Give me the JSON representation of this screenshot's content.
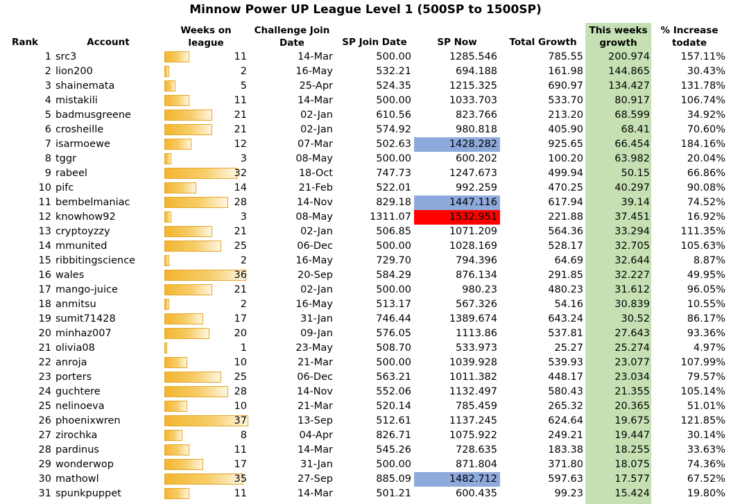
{
  "title": "Minnow Power UP League Level 1 (500SP to 1500SP)",
  "headers": {
    "rank": "Rank",
    "account": "Account",
    "weeks_l1": "Weeks on",
    "weeks_l2": "league",
    "join_l1": "Challenge Join",
    "join_l2": "Date",
    "sp_join": "SP Join Date",
    "sp_now": "SP Now",
    "total_growth": "Total Growth",
    "week_l1": "This weeks",
    "week_l2": "growth",
    "pct_l1": "% Increase",
    "pct_l2": "todate"
  },
  "colors": {
    "this_week_fill": "#c6e0b4",
    "highlight_blue": "#8ea9db",
    "highlight_red": "#ff0000",
    "bar_gold": "#f3b530"
  },
  "max_weeks": 37,
  "rows": [
    {
      "rank": "1",
      "account": "src3",
      "weeks": "11",
      "join": "14-Mar",
      "sp_join": "500.00",
      "sp_now": "1285.546",
      "total": "785.55",
      "week": "200.974",
      "pct": "157.11%",
      "hl": ""
    },
    {
      "rank": "2",
      "account": "lion200",
      "weeks": "2",
      "join": "16-May",
      "sp_join": "532.21",
      "sp_now": "694.188",
      "total": "161.98",
      "week": "144.865",
      "pct": "30.43%",
      "hl": ""
    },
    {
      "rank": "3",
      "account": "shainemata",
      "weeks": "5",
      "join": "25-Apr",
      "sp_join": "524.35",
      "sp_now": "1215.325",
      "total": "690.97",
      "week": "134.427",
      "pct": "131.78%",
      "hl": ""
    },
    {
      "rank": "4",
      "account": "mistakili",
      "weeks": "11",
      "join": "14-Mar",
      "sp_join": "500.00",
      "sp_now": "1033.703",
      "total": "533.70",
      "week": "80.917",
      "pct": "106.74%",
      "hl": ""
    },
    {
      "rank": "5",
      "account": "badmusgreene",
      "weeks": "21",
      "join": "02-Jan",
      "sp_join": "610.56",
      "sp_now": "823.766",
      "total": "213.20",
      "week": "68.599",
      "pct": "34.92%",
      "hl": ""
    },
    {
      "rank": "6",
      "account": "crosheille",
      "weeks": "21",
      "join": "02-Jan",
      "sp_join": "574.92",
      "sp_now": "980.818",
      "total": "405.90",
      "week": "68.41",
      "pct": "70.60%",
      "hl": ""
    },
    {
      "rank": "7",
      "account": "isarmoewe",
      "weeks": "12",
      "join": "07-Mar",
      "sp_join": "502.63",
      "sp_now": "1428.282",
      "total": "925.65",
      "week": "66.454",
      "pct": "184.16%",
      "hl": "blue"
    },
    {
      "rank": "8",
      "account": "tggr",
      "weeks": "3",
      "join": "08-May",
      "sp_join": "500.00",
      "sp_now": "600.202",
      "total": "100.20",
      "week": "63.982",
      "pct": "20.04%",
      "hl": ""
    },
    {
      "rank": "9",
      "account": "rabeel",
      "weeks": "32",
      "join": "18-Oct",
      "sp_join": "747.73",
      "sp_now": "1247.673",
      "total": "499.94",
      "week": "50.15",
      "pct": "66.86%",
      "hl": ""
    },
    {
      "rank": "10",
      "account": "pifc",
      "weeks": "14",
      "join": "21-Feb",
      "sp_join": "522.01",
      "sp_now": "992.259",
      "total": "470.25",
      "week": "40.297",
      "pct": "90.08%",
      "hl": ""
    },
    {
      "rank": "11",
      "account": "bembelmaniac",
      "weeks": "28",
      "join": "14-Nov",
      "sp_join": "829.18",
      "sp_now": "1447.116",
      "total": "617.94",
      "week": "39.14",
      "pct": "74.52%",
      "hl": "blue"
    },
    {
      "rank": "12",
      "account": "knowhow92",
      "weeks": "3",
      "join": "08-May",
      "sp_join": "1311.07",
      "sp_now": "1532.951",
      "total": "221.88",
      "week": "37.451",
      "pct": "16.92%",
      "hl": "red"
    },
    {
      "rank": "13",
      "account": "cryptoyzzy",
      "weeks": "21",
      "join": "02-Jan",
      "sp_join": "506.85",
      "sp_now": "1071.209",
      "total": "564.36",
      "week": "33.294",
      "pct": "111.35%",
      "hl": ""
    },
    {
      "rank": "14",
      "account": "mmunited",
      "weeks": "25",
      "join": "06-Dec",
      "sp_join": "500.00",
      "sp_now": "1028.169",
      "total": "528.17",
      "week": "32.705",
      "pct": "105.63%",
      "hl": ""
    },
    {
      "rank": "15",
      "account": "ribbitingscience",
      "weeks": "2",
      "join": "16-May",
      "sp_join": "729.70",
      "sp_now": "794.396",
      "total": "64.69",
      "week": "32.644",
      "pct": "8.87%",
      "hl": ""
    },
    {
      "rank": "16",
      "account": "wales",
      "weeks": "36",
      "join": "20-Sep",
      "sp_join": "584.29",
      "sp_now": "876.134",
      "total": "291.85",
      "week": "32.227",
      "pct": "49.95%",
      "hl": ""
    },
    {
      "rank": "17",
      "account": "mango-juice",
      "weeks": "21",
      "join": "02-Jan",
      "sp_join": "500.00",
      "sp_now": "980.23",
      "total": "480.23",
      "week": "31.612",
      "pct": "96.05%",
      "hl": ""
    },
    {
      "rank": "18",
      "account": "anmitsu",
      "weeks": "2",
      "join": "16-May",
      "sp_join": "513.17",
      "sp_now": "567.326",
      "total": "54.16",
      "week": "30.839",
      "pct": "10.55%",
      "hl": ""
    },
    {
      "rank": "19",
      "account": "sumit71428",
      "weeks": "17",
      "join": "31-Jan",
      "sp_join": "746.44",
      "sp_now": "1389.674",
      "total": "643.24",
      "week": "30.52",
      "pct": "86.17%",
      "hl": ""
    },
    {
      "rank": "20",
      "account": "minhaz007",
      "weeks": "20",
      "join": "09-Jan",
      "sp_join": "576.05",
      "sp_now": "1113.86",
      "total": "537.81",
      "week": "27.643",
      "pct": "93.36%",
      "hl": ""
    },
    {
      "rank": "21",
      "account": "olivia08",
      "weeks": "1",
      "join": "23-May",
      "sp_join": "508.70",
      "sp_now": "533.973",
      "total": "25.27",
      "week": "25.274",
      "pct": "4.97%",
      "hl": ""
    },
    {
      "rank": "22",
      "account": "anroja",
      "weeks": "10",
      "join": "21-Mar",
      "sp_join": "500.00",
      "sp_now": "1039.928",
      "total": "539.93",
      "week": "23.077",
      "pct": "107.99%",
      "hl": ""
    },
    {
      "rank": "23",
      "account": "porters",
      "weeks": "25",
      "join": "06-Dec",
      "sp_join": "563.21",
      "sp_now": "1011.382",
      "total": "448.17",
      "week": "23.034",
      "pct": "79.57%",
      "hl": ""
    },
    {
      "rank": "24",
      "account": "guchtere",
      "weeks": "28",
      "join": "14-Nov",
      "sp_join": "552.06",
      "sp_now": "1132.497",
      "total": "580.43",
      "week": "21.355",
      "pct": "105.14%",
      "hl": ""
    },
    {
      "rank": "25",
      "account": "nelinoeva",
      "weeks": "10",
      "join": "21-Mar",
      "sp_join": "520.14",
      "sp_now": "785.459",
      "total": "265.32",
      "week": "20.365",
      "pct": "51.01%",
      "hl": ""
    },
    {
      "rank": "26",
      "account": "phoenixwren",
      "weeks": "37",
      "join": "13-Sep",
      "sp_join": "512.61",
      "sp_now": "1137.245",
      "total": "624.64",
      "week": "19.675",
      "pct": "121.85%",
      "hl": ""
    },
    {
      "rank": "27",
      "account": "zirochka",
      "weeks": "8",
      "join": "04-Apr",
      "sp_join": "826.71",
      "sp_now": "1075.922",
      "total": "249.21",
      "week": "19.447",
      "pct": "30.14%",
      "hl": ""
    },
    {
      "rank": "28",
      "account": "pardinus",
      "weeks": "11",
      "join": "14-Mar",
      "sp_join": "545.26",
      "sp_now": "728.635",
      "total": "183.38",
      "week": "18.255",
      "pct": "33.63%",
      "hl": ""
    },
    {
      "rank": "29",
      "account": "wonderwop",
      "weeks": "17",
      "join": "31-Jan",
      "sp_join": "500.00",
      "sp_now": "871.804",
      "total": "371.80",
      "week": "18.075",
      "pct": "74.36%",
      "hl": ""
    },
    {
      "rank": "30",
      "account": "mathowl",
      "weeks": "35",
      "join": "27-Sep",
      "sp_join": "885.09",
      "sp_now": "1482.712",
      "total": "597.63",
      "week": "17.577",
      "pct": "67.52%",
      "hl": "blue"
    },
    {
      "rank": "31",
      "account": "spunkpuppet",
      "weeks": "11",
      "join": "14-Mar",
      "sp_join": "501.21",
      "sp_now": "600.435",
      "total": "99.23",
      "week": "15.424",
      "pct": "19.80%",
      "hl": ""
    }
  ]
}
